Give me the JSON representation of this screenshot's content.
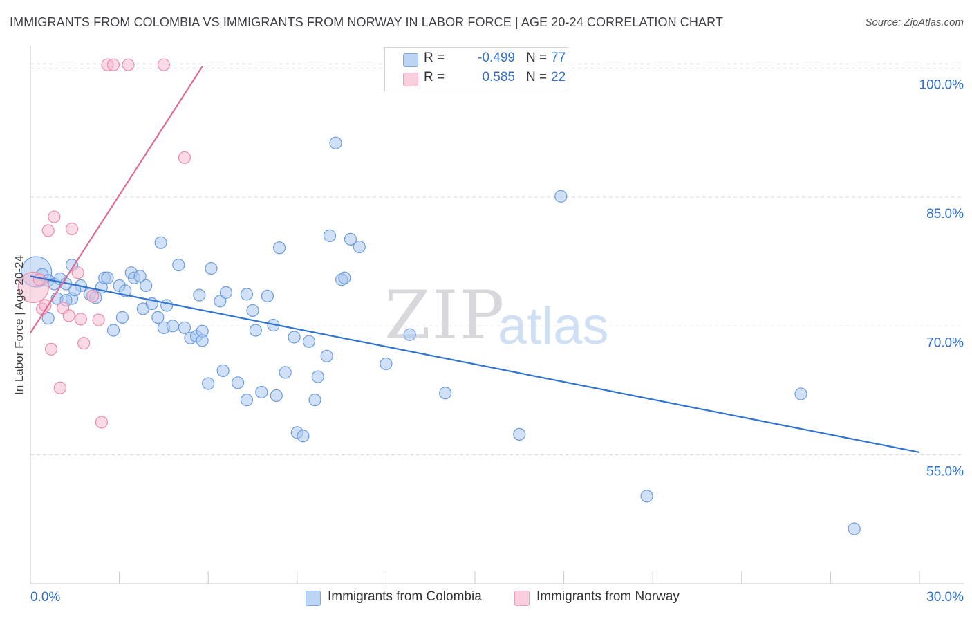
{
  "title": "IMMIGRANTS FROM COLOMBIA VS IMMIGRANTS FROM NORWAY IN LABOR FORCE | AGE 20-24 CORRELATION CHART",
  "source": "Source: ZipAtlas.com",
  "watermark": {
    "zip": "ZIP",
    "atlas": "atlas"
  },
  "legend_top": [
    {
      "r_label": "R =",
      "r_value": "-0.499",
      "n_label": "N =",
      "n_value": "77"
    },
    {
      "r_label": "R =",
      "r_value": "0.585",
      "n_label": "N =",
      "n_value": "22"
    }
  ],
  "legend_bottom": [
    {
      "label": "Immigrants from Colombia"
    },
    {
      "label": "Immigrants from Norway"
    }
  ],
  "colors": {
    "colombia_fill": "#a9c8f0",
    "colombia_stroke": "#6b9be0",
    "colombia_line": "#2f74d0",
    "norway_fill": "#f6bcd0",
    "norway_stroke": "#e98cac",
    "norway_line": "#e06a92",
    "tick_label": "#2f6fcb",
    "grid": "#d9d9de"
  },
  "chart_data": {
    "type": "scatter",
    "title": "IMMIGRANTS FROM COLOMBIA VS IMMIGRANTS FROM NORWAY IN LABOR FORCE | AGE 20-24 CORRELATION CHART",
    "xlabel": "",
    "ylabel": "In Labor Force | Age 20-24",
    "xlim": [
      0,
      30
    ],
    "ylim": [
      40,
      101.5
    ],
    "x_tick_labels": [
      "0.0%",
      "30.0%"
    ],
    "y_ticks": [
      55,
      70,
      85,
      100
    ],
    "y_tick_labels": [
      "55.0%",
      "70.0%",
      "85.0%",
      "100.0%"
    ],
    "series": [
      {
        "name": "Immigrants from Colombia",
        "color": "#a9c8f0",
        "trendline": {
          "x": [
            0,
            30
          ],
          "y": [
            75.8,
            55.3
          ]
        },
        "points": [
          {
            "x": 0.2,
            "y": 76.3,
            "big": true
          },
          {
            "x": 0.4,
            "y": 76.0
          },
          {
            "x": 0.6,
            "y": 75.3
          },
          {
            "x": 0.8,
            "y": 74.9
          },
          {
            "x": 1.0,
            "y": 75.5
          },
          {
            "x": 1.2,
            "y": 74.9
          },
          {
            "x": 0.9,
            "y": 73.2
          },
          {
            "x": 0.6,
            "y": 70.9
          },
          {
            "x": 1.4,
            "y": 73.2
          },
          {
            "x": 1.7,
            "y": 74.7
          },
          {
            "x": 1.5,
            "y": 74.2
          },
          {
            "x": 2.0,
            "y": 73.7
          },
          {
            "x": 2.2,
            "y": 73.3
          },
          {
            "x": 1.4,
            "y": 77.1
          },
          {
            "x": 2.4,
            "y": 74.5
          },
          {
            "x": 2.5,
            "y": 75.6
          },
          {
            "x": 2.6,
            "y": 75.6
          },
          {
            "x": 2.8,
            "y": 69.5
          },
          {
            "x": 3.0,
            "y": 74.7
          },
          {
            "x": 3.2,
            "y": 74.1
          },
          {
            "x": 3.1,
            "y": 71.0
          },
          {
            "x": 3.4,
            "y": 76.2
          },
          {
            "x": 3.5,
            "y": 75.6
          },
          {
            "x": 3.7,
            "y": 75.8
          },
          {
            "x": 3.8,
            "y": 72.0
          },
          {
            "x": 3.9,
            "y": 74.7
          },
          {
            "x": 4.1,
            "y": 72.6
          },
          {
            "x": 4.3,
            "y": 71.0
          },
          {
            "x": 4.4,
            "y": 79.7
          },
          {
            "x": 4.6,
            "y": 72.4
          },
          {
            "x": 4.5,
            "y": 69.8
          },
          {
            "x": 4.8,
            "y": 70.0
          },
          {
            "x": 5.0,
            "y": 77.1
          },
          {
            "x": 5.2,
            "y": 69.8
          },
          {
            "x": 5.4,
            "y": 68.6
          },
          {
            "x": 5.6,
            "y": 68.8
          },
          {
            "x": 5.8,
            "y": 69.4
          },
          {
            "x": 5.7,
            "y": 73.6
          },
          {
            "x": 5.8,
            "y": 68.3
          },
          {
            "x": 6.1,
            "y": 76.7
          },
          {
            "x": 6.0,
            "y": 63.3
          },
          {
            "x": 6.4,
            "y": 72.9
          },
          {
            "x": 6.5,
            "y": 64.8
          },
          {
            "x": 6.6,
            "y": 73.9
          },
          {
            "x": 7.0,
            "y": 63.4
          },
          {
            "x": 7.3,
            "y": 73.7
          },
          {
            "x": 7.3,
            "y": 61.4
          },
          {
            "x": 7.5,
            "y": 71.8
          },
          {
            "x": 7.6,
            "y": 69.5
          },
          {
            "x": 7.8,
            "y": 62.3
          },
          {
            "x": 8.0,
            "y": 73.5
          },
          {
            "x": 8.2,
            "y": 70.1
          },
          {
            "x": 8.3,
            "y": 61.9
          },
          {
            "x": 8.4,
            "y": 79.1
          },
          {
            "x": 8.6,
            "y": 64.6
          },
          {
            "x": 8.9,
            "y": 68.7
          },
          {
            "x": 9.0,
            "y": 57.6
          },
          {
            "x": 9.2,
            "y": 57.2
          },
          {
            "x": 9.4,
            "y": 68.2
          },
          {
            "x": 9.6,
            "y": 61.4
          },
          {
            "x": 9.7,
            "y": 64.1
          },
          {
            "x": 10.0,
            "y": 66.5
          },
          {
            "x": 10.1,
            "y": 80.5
          },
          {
            "x": 10.3,
            "y": 91.3
          },
          {
            "x": 10.5,
            "y": 75.4
          },
          {
            "x": 10.6,
            "y": 75.6
          },
          {
            "x": 10.8,
            "y": 80.1
          },
          {
            "x": 11.1,
            "y": 79.2
          },
          {
            "x": 12.0,
            "y": 65.6
          },
          {
            "x": 12.8,
            "y": 69.0
          },
          {
            "x": 14.0,
            "y": 62.2
          },
          {
            "x": 16.5,
            "y": 57.4
          },
          {
            "x": 17.9,
            "y": 85.1
          },
          {
            "x": 20.8,
            "y": 50.2
          },
          {
            "x": 26.0,
            "y": 62.1
          },
          {
            "x": 27.8,
            "y": 46.4
          },
          {
            "x": 1.2,
            "y": 73.0
          }
        ]
      },
      {
        "name": "Immigrants from Norway",
        "color": "#f6bcd0",
        "trendline": {
          "x": [
            0,
            5.8
          ],
          "y": [
            69.2,
            100.2
          ]
        },
        "points": [
          {
            "x": 0.1,
            "y": 74.5,
            "big": true
          },
          {
            "x": 0.3,
            "y": 75.4
          },
          {
            "x": 0.4,
            "y": 72.0
          },
          {
            "x": 0.5,
            "y": 72.4
          },
          {
            "x": 0.6,
            "y": 81.1
          },
          {
            "x": 0.7,
            "y": 67.3
          },
          {
            "x": 0.8,
            "y": 82.7
          },
          {
            "x": 1.0,
            "y": 62.8
          },
          {
            "x": 1.1,
            "y": 72.1
          },
          {
            "x": 1.3,
            "y": 71.2
          },
          {
            "x": 1.4,
            "y": 81.3
          },
          {
            "x": 1.6,
            "y": 76.2
          },
          {
            "x": 1.7,
            "y": 70.8
          },
          {
            "x": 1.8,
            "y": 68.0
          },
          {
            "x": 2.1,
            "y": 73.5
          },
          {
            "x": 2.3,
            "y": 70.7
          },
          {
            "x": 2.4,
            "y": 58.8
          },
          {
            "x": 2.6,
            "y": 100.4
          },
          {
            "x": 2.8,
            "y": 100.4
          },
          {
            "x": 3.3,
            "y": 100.4
          },
          {
            "x": 4.5,
            "y": 100.4
          },
          {
            "x": 5.2,
            "y": 89.6
          }
        ]
      }
    ]
  }
}
